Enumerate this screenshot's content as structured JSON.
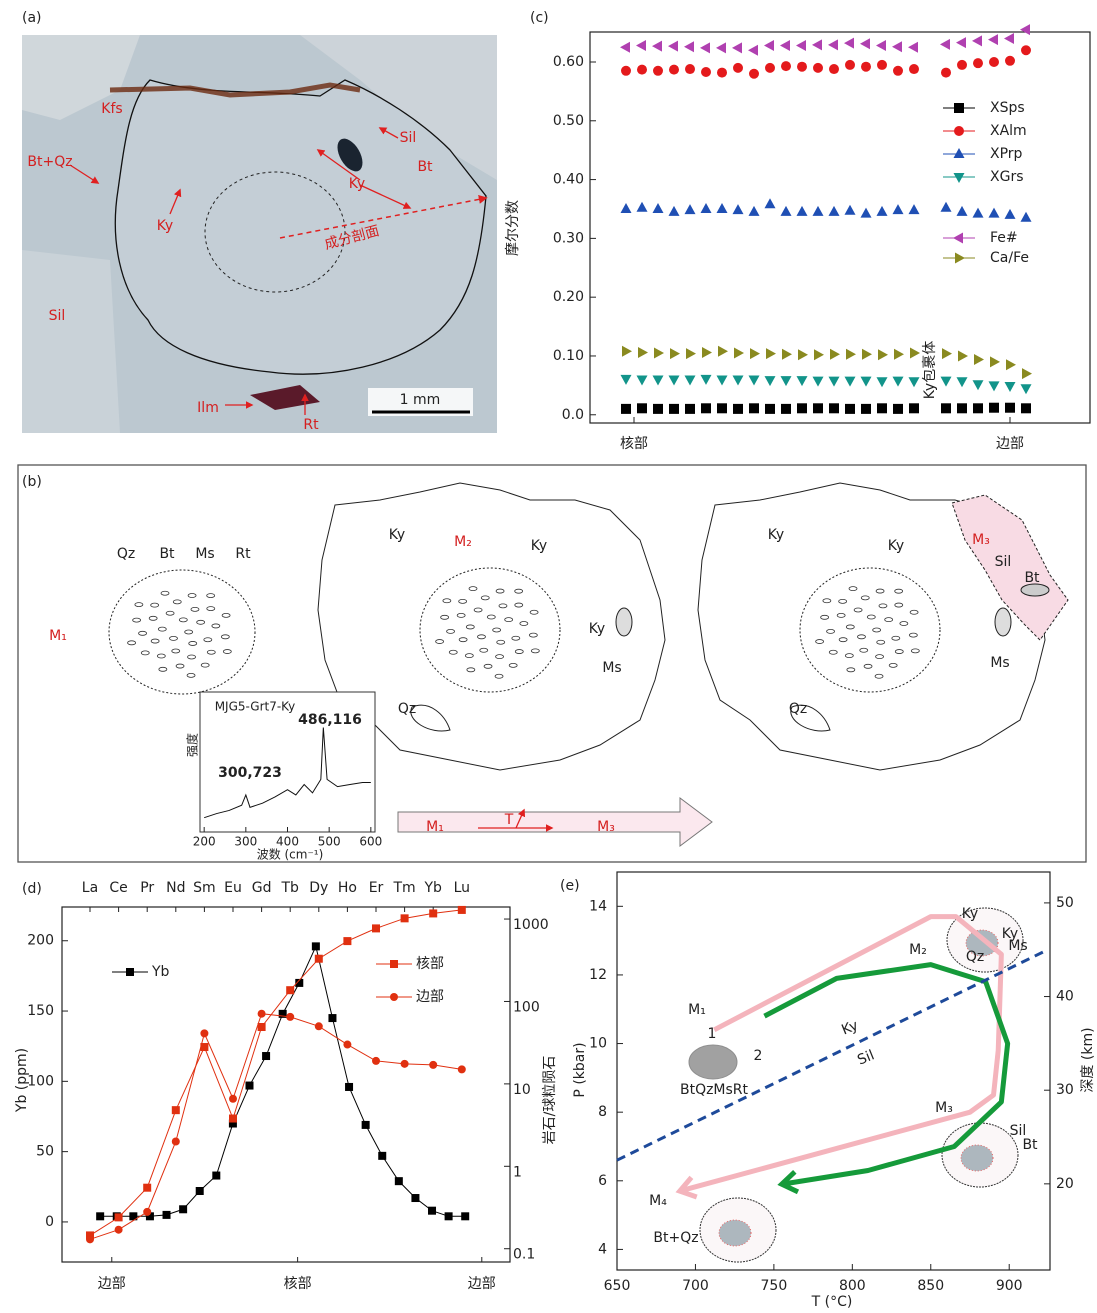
{
  "panel_labels": [
    "(a)",
    "(b)",
    "(c)",
    "(d)",
    "(e)"
  ],
  "photo_a": {
    "labels": [
      "Kfs",
      "Bt+Qz",
      "Ky",
      "Sil",
      "Ky",
      "Sil",
      "Bt",
      "Ilm",
      "Rt",
      "成分剖面"
    ],
    "scale_bar": "1 mm"
  },
  "diagram_b": {
    "stage1": {
      "label": "M₁",
      "minerals": [
        "Qz",
        "Bt",
        "Ms",
        "Rt"
      ]
    },
    "stage2": {
      "label": "M₂",
      "minerals": [
        "Ky",
        "Ky",
        "Ky",
        "Ms",
        "Qz"
      ]
    },
    "stage3": {
      "label": "M₃",
      "minerals": [
        "Ky",
        "Ky",
        "Sil",
        "Bt",
        "Ms",
        "Qz"
      ]
    },
    "arrow": {
      "labels": [
        "M₁",
        "T",
        "M₃"
      ]
    }
  },
  "chart_data": [
    {
      "type": "scatter",
      "ylabel": "摩尔分数",
      "annotation": "Ky包裹体",
      "x": [
        0,
        1,
        2,
        3,
        4,
        5,
        6,
        7,
        8,
        9,
        10,
        11,
        12,
        13,
        14,
        15,
        16,
        17,
        18,
        20,
        21,
        22,
        23,
        24,
        25
      ],
      "xlim": [
        -2.25,
        29
      ],
      "xticks": [
        {
          "value": 0.5,
          "label": "核部"
        },
        {
          "value": 24,
          "label": "边部"
        }
      ],
      "ylim": [
        -0.014,
        0.651
      ],
      "yticks": [
        {
          "value": 0,
          "label": "0.0"
        },
        {
          "value": 0.1,
          "label": "0.10"
        },
        {
          "value": 0.2,
          "label": "0.20"
        },
        {
          "value": 0.3,
          "label": "0.30"
        },
        {
          "value": 0.4,
          "label": "0.40"
        },
        {
          "value": 0.5,
          "label": "0.50"
        },
        {
          "value": 0.6,
          "label": "0.60"
        }
      ],
      "series": [
        {
          "name": "XSps",
          "color": "#000000",
          "marker": "square",
          "values": [
            0.01,
            0.011,
            0.01,
            0.01,
            0.01,
            0.011,
            0.011,
            0.01,
            0.011,
            0.01,
            0.01,
            0.011,
            0.011,
            0.011,
            0.01,
            0.01,
            0.011,
            0.01,
            0.011,
            0.011,
            0.011,
            0.011,
            0.012,
            0.012,
            0.011
          ]
        },
        {
          "name": "XAlm",
          "color": "#e41a1c",
          "marker": "circle",
          "values": [
            0.585,
            0.587,
            0.585,
            0.587,
            0.588,
            0.583,
            0.582,
            0.59,
            0.58,
            0.59,
            0.593,
            0.592,
            0.59,
            0.588,
            0.595,
            0.592,
            0.595,
            0.585,
            0.588,
            0.582,
            0.595,
            0.598,
            0.6,
            0.602,
            0.62
          ]
        },
        {
          "name": "XPrp",
          "color": "#1f4fb4",
          "marker": "triangle-up",
          "values": [
            0.35,
            0.352,
            0.35,
            0.345,
            0.348,
            0.35,
            0.35,
            0.348,
            0.345,
            0.358,
            0.345,
            0.345,
            0.345,
            0.345,
            0.347,
            0.342,
            0.345,
            0.348,
            0.348,
            0.352,
            0.345,
            0.342,
            0.342,
            0.34,
            0.335
          ]
        },
        {
          "name": "XGrs",
          "color": "#12948a",
          "marker": "triangle-down",
          "values": [
            0.061,
            0.06,
            0.06,
            0.06,
            0.06,
            0.061,
            0.06,
            0.06,
            0.06,
            0.059,
            0.059,
            0.059,
            0.058,
            0.058,
            0.058,
            0.058,
            0.057,
            0.058,
            0.057,
            0.058,
            0.057,
            0.052,
            0.05,
            0.049,
            0.045
          ]
        },
        {
          "name": "Fe#",
          "color": "#b040b0",
          "marker": "triangle-left",
          "values": [
            0.625,
            0.628,
            0.627,
            0.627,
            0.626,
            0.624,
            0.624,
            0.624,
            0.62,
            0.628,
            0.628,
            0.628,
            0.629,
            0.629,
            0.632,
            0.631,
            0.628,
            0.626,
            0.625,
            0.63,
            0.633,
            0.636,
            0.638,
            0.64,
            0.655
          ]
        },
        {
          "name": "Ca/Fe",
          "color": "#8a8a20",
          "marker": "triangle-right",
          "values": [
            0.108,
            0.106,
            0.105,
            0.104,
            0.104,
            0.106,
            0.108,
            0.105,
            0.104,
            0.104,
            0.103,
            0.102,
            0.102,
            0.103,
            0.103,
            0.103,
            0.102,
            0.103,
            0.105,
            0.104,
            0.1,
            0.094,
            0.09,
            0.085,
            0.07
          ]
        }
      ]
    },
    {
      "type": "line",
      "title": "MJG5-Grt7-Ky",
      "ylabel": "强度",
      "xlabel": "波数 (cm⁻¹)",
      "annotations": [
        "300,723",
        "486,116"
      ],
      "x": [
        200,
        230,
        260,
        290,
        300,
        310,
        340,
        370,
        400,
        420,
        440,
        460,
        480,
        486,
        495,
        520,
        550,
        580,
        600
      ],
      "values": [
        8,
        12,
        15,
        20,
        30,
        18,
        22,
        28,
        35,
        30,
        40,
        32,
        45,
        95,
        45,
        38,
        40,
        42,
        42
      ],
      "xlim": [
        190,
        610
      ],
      "ylim": [
        0,
        110
      ],
      "xticks": [
        200,
        300,
        400,
        500,
        600
      ]
    },
    {
      "type": "line",
      "ylabel": "Yb (ppm)",
      "y2label": "岩石/球粒陨石",
      "categories": [
        "La",
        "Ce",
        "Pr",
        "Nd",
        "Sm",
        "Eu",
        "Gd",
        "Tb",
        "Dy",
        "Ho",
        "Er",
        "Tm",
        "Yb",
        "Lu"
      ],
      "x": [
        0,
        1,
        2,
        3,
        4,
        5,
        6,
        7,
        8,
        9,
        10,
        11,
        12,
        13,
        14,
        15,
        16,
        17,
        18,
        19,
        20,
        21,
        22
      ],
      "xlim": [
        -2.3,
        24.7
      ],
      "xticks": [
        {
          "value": 0.7,
          "label": "边部"
        },
        {
          "value": 11.9,
          "label": "核部"
        },
        {
          "value": 23,
          "label": "边部"
        }
      ],
      "ylim": [
        -28.5,
        224
      ],
      "yticks": [
        0,
        50,
        100,
        150,
        200
      ],
      "y2lim": [
        0.069,
        1400
      ],
      "y2ticks": [
        0.1,
        1,
        10,
        100,
        1000
      ],
      "y2log": true,
      "series": [
        {
          "name": "Yb",
          "color": "#000000",
          "marker": "square",
          "values": [
            4,
            4,
            4,
            4,
            5,
            9,
            22,
            33,
            70,
            97,
            118,
            148,
            170,
            196,
            145,
            96,
            69,
            47,
            29,
            17,
            8,
            4,
            4
          ]
        },
        {
          "name": "核部",
          "color": "#e03010",
          "marker": "square",
          "axis": "y2",
          "values": [
            0.145,
            0.24,
            0.55,
            4.8,
            28,
            3.8,
            49,
            137,
            330,
            540,
            770,
            1020,
            1170,
            1290
          ]
        },
        {
          "name": "边部",
          "color": "#e03010",
          "marker": "circle",
          "axis": "y2",
          "values": [
            0.13,
            0.17,
            0.28,
            2.0,
            41,
            6.6,
            71,
            65,
            50,
            30,
            19,
            17.5,
            17,
            15
          ]
        }
      ]
    },
    {
      "type": "line",
      "xlabel": "T (°C)",
      "ylabel": "P (kbar)",
      "y2label": "深度 (km)",
      "annotations": [
        "M₁",
        "M₂",
        "M₃",
        "M₄",
        "1",
        "2",
        "Ky",
        "Sil",
        "BtQzMsRt",
        "Bt+Qz",
        "Ky",
        "Ky",
        "Ms",
        "Qz",
        "Sil",
        "Bt"
      ],
      "xlim": [
        650,
        926
      ],
      "xticks": [
        650,
        700,
        750,
        800,
        850,
        900
      ],
      "ylim": [
        3.4,
        15
      ],
      "yticks": [
        4,
        6,
        8,
        10,
        12,
        14
      ],
      "y2lim": [
        10.8,
        53.3
      ],
      "y2ticks": [
        20,
        30,
        40,
        50
      ],
      "series": [
        {
          "color": "#f4b4bc",
          "linestyle": "solid",
          "x": [
            712,
            850,
            866,
            895,
            893,
            890,
            875,
            690
          ],
          "values": [
            10.4,
            13.7,
            13.7,
            12.6,
            9.8,
            8.5,
            8.0,
            5.7
          ]
        },
        {
          "color": "#159a3a",
          "linestyle": "solid",
          "x": [
            744,
            790,
            850,
            885,
            899,
            895,
            865,
            810,
            755
          ],
          "values": [
            10.8,
            11.9,
            12.3,
            11.8,
            10.0,
            8.3,
            7.0,
            6.3,
            5.9
          ]
        },
        {
          "color": "#1e4a9a",
          "linestyle": "dashed",
          "x": [
            650,
            923
          ],
          "values": [
            6.6,
            12.7
          ]
        }
      ]
    }
  ]
}
